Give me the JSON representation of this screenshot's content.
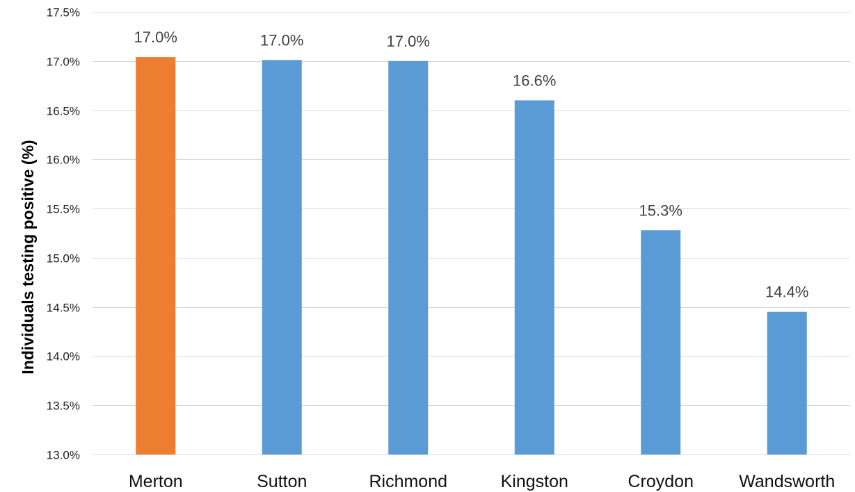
{
  "chart_data": {
    "type": "bar",
    "title": "",
    "xlabel": "",
    "ylabel": "Individuals testing positive (%)",
    "ylim": [
      13.0,
      17.5
    ],
    "yticks": [
      "13.0%",
      "13.5%",
      "14.0%",
      "14.5%",
      "15.0%",
      "15.5%",
      "16.0%",
      "16.5%",
      "17.0%",
      "17.5%"
    ],
    "ytick_values": [
      13.0,
      13.5,
      14.0,
      14.5,
      15.0,
      15.5,
      16.0,
      16.5,
      17.0,
      17.5
    ],
    "grid": true,
    "categories": [
      "Merton",
      "Sutton",
      "Richmond",
      "Kingston",
      "Croydon",
      "Wandsworth"
    ],
    "values": [
      17.04,
      17.01,
      17.0,
      16.6,
      15.28,
      14.45
    ],
    "data_labels": [
      "17.0%",
      "17.0%",
      "17.0%",
      "16.6%",
      "15.3%",
      "14.4%"
    ],
    "bar_colors": [
      "#ED7D31",
      "#5B9BD5",
      "#5B9BD5",
      "#5B9BD5",
      "#5B9BD5",
      "#5B9BD5"
    ],
    "highlight_color": "#ED7D31",
    "default_color": "#5B9BD5"
  }
}
